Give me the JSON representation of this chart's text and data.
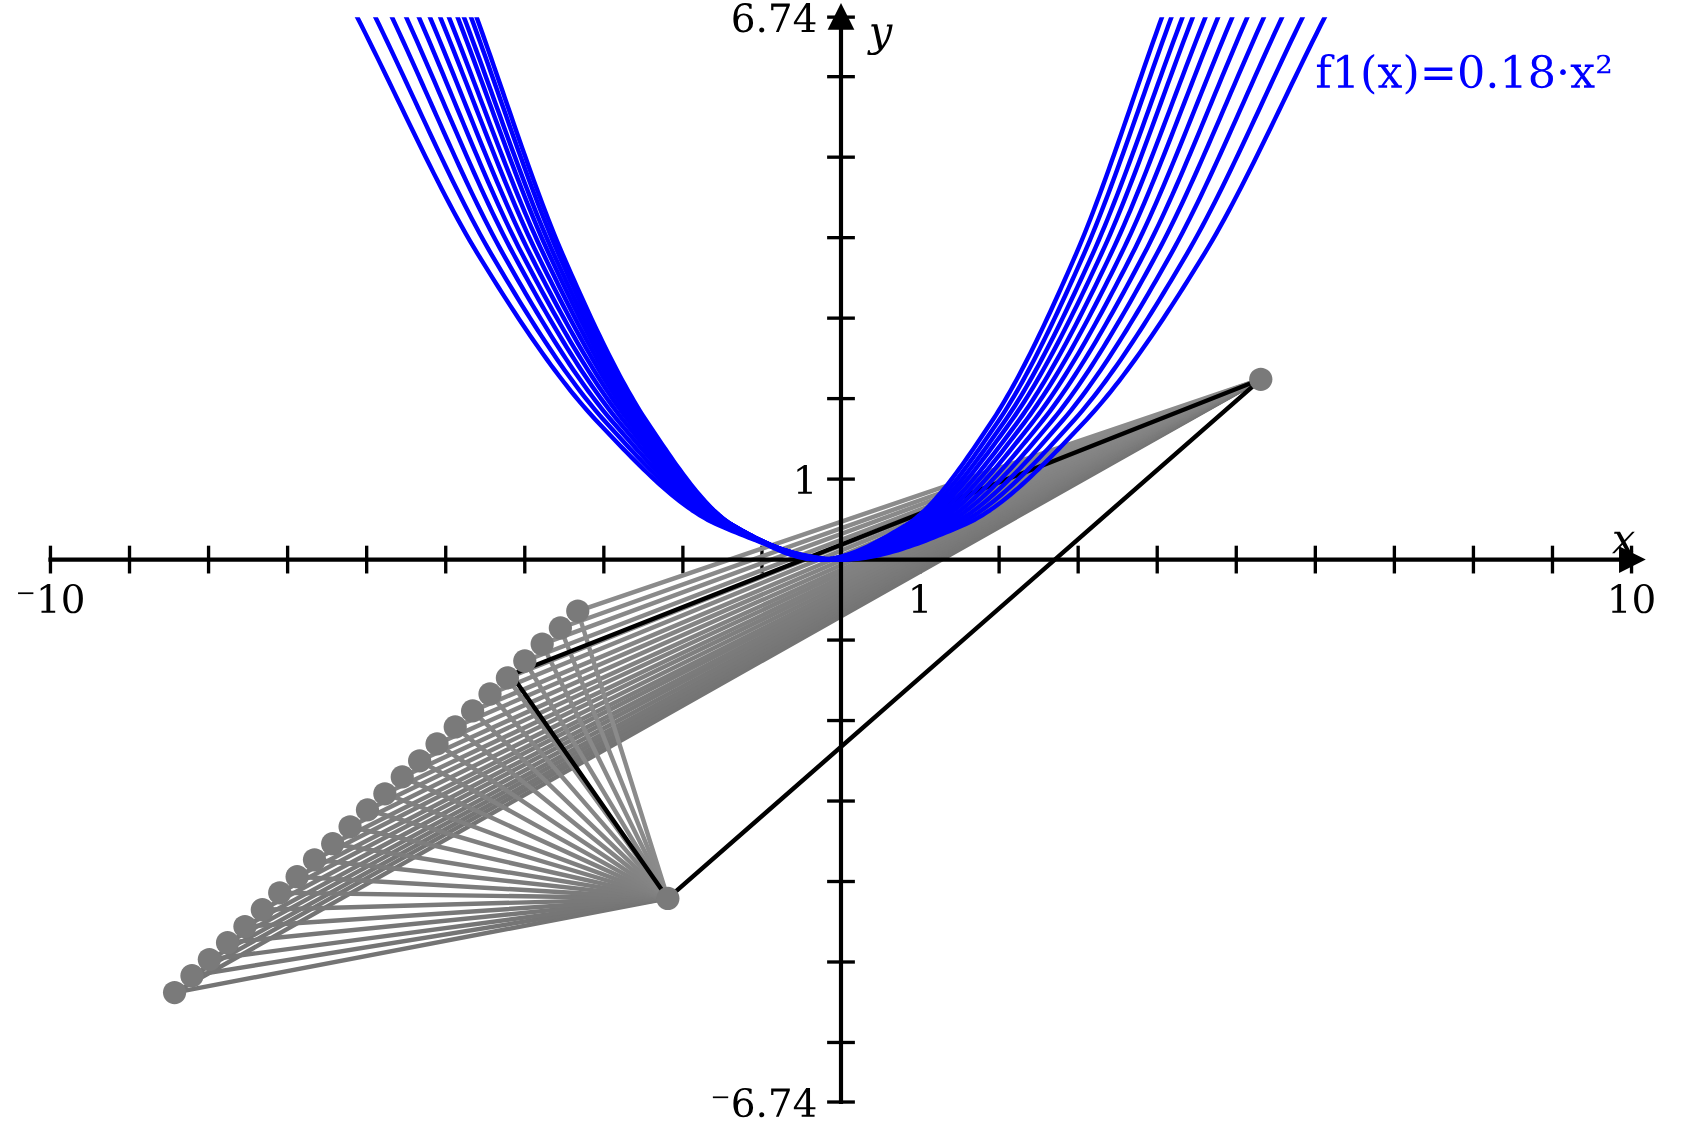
{
  "chart_data": {
    "type": "line",
    "xlabel": "x",
    "ylabel": "y",
    "xlim": [
      -10,
      10
    ],
    "ylim": [
      -6.74,
      6.74
    ],
    "xticks": [
      {
        "value": -10,
        "label": "⁻10"
      },
      {
        "value": -9,
        "label": null
      },
      {
        "value": -8,
        "label": null
      },
      {
        "value": -7,
        "label": null
      },
      {
        "value": -6,
        "label": null
      },
      {
        "value": -5,
        "label": null
      },
      {
        "value": -4,
        "label": null
      },
      {
        "value": -3,
        "label": null
      },
      {
        "value": -2,
        "label": null
      },
      {
        "value": -1,
        "label": null
      },
      {
        "value": 1,
        "label": "1"
      },
      {
        "value": 2,
        "label": null
      },
      {
        "value": 3,
        "label": null
      },
      {
        "value": 4,
        "label": null
      },
      {
        "value": 5,
        "label": null
      },
      {
        "value": 6,
        "label": null
      },
      {
        "value": 7,
        "label": null
      },
      {
        "value": 8,
        "label": null
      },
      {
        "value": 9,
        "label": null
      },
      {
        "value": 10,
        "label": "10"
      }
    ],
    "yticks": [
      {
        "value": -6.74,
        "label": "⁻6.74"
      },
      {
        "value": -6,
        "label": null
      },
      {
        "value": -5,
        "label": null
      },
      {
        "value": -4,
        "label": null
      },
      {
        "value": -3,
        "label": null
      },
      {
        "value": -2,
        "label": null
      },
      {
        "value": -1,
        "label": null
      },
      {
        "value": 1,
        "label": "1"
      },
      {
        "value": 2,
        "label": null
      },
      {
        "value": 3,
        "label": null
      },
      {
        "value": 4,
        "label": null
      },
      {
        "value": 5,
        "label": null
      },
      {
        "value": 6,
        "label": null
      },
      {
        "value": 6.74,
        "label": "6.74"
      }
    ],
    "grid": false,
    "legend": false,
    "annotations": [
      "f1(x)=0.18·x²"
    ],
    "series": [
      {
        "type": "line",
        "color": "#747474",
        "x": [
          -2.19,
          -8.43,
          5.31
        ],
        "values": [
          -4.21,
          -5.38,
          2.24
        ]
      },
      {
        "type": "line",
        "color": "#757575",
        "x": [
          -2.19,
          -8.21,
          5.31
        ],
        "values": [
          -4.21,
          -5.17,
          2.24
        ]
      },
      {
        "type": "line",
        "color": "#767676",
        "x": [
          -2.19,
          -7.99,
          5.31
        ],
        "values": [
          -4.21,
          -4.97,
          2.24
        ]
      },
      {
        "type": "line",
        "color": "#777777",
        "x": [
          -2.19,
          -7.76,
          5.31
        ],
        "values": [
          -4.21,
          -4.76,
          2.24
        ]
      },
      {
        "type": "line",
        "color": "#787878",
        "x": [
          -2.19,
          -7.54,
          5.31
        ],
        "values": [
          -4.21,
          -4.56,
          2.24
        ]
      },
      {
        "type": "line",
        "color": "#797979",
        "x": [
          -2.19,
          -7.32,
          5.31
        ],
        "values": [
          -4.21,
          -4.35,
          2.24
        ]
      },
      {
        "type": "line",
        "color": "#7a7a7a",
        "x": [
          -2.19,
          -7.1,
          5.31
        ],
        "values": [
          -4.21,
          -4.14,
          2.24
        ]
      },
      {
        "type": "line",
        "color": "#7b7b7b",
        "x": [
          -2.19,
          -6.88,
          5.31
        ],
        "values": [
          -4.21,
          -3.94,
          2.24
        ]
      },
      {
        "type": "line",
        "color": "#7c7c7c",
        "x": [
          -2.19,
          -6.66,
          5.31
        ],
        "values": [
          -4.21,
          -3.73,
          2.24
        ]
      },
      {
        "type": "line",
        "color": "#7d7d7d",
        "x": [
          -2.19,
          -6.43,
          5.31
        ],
        "values": [
          -4.21,
          -3.53,
          2.24
        ]
      },
      {
        "type": "line",
        "color": "#7e7e7e",
        "x": [
          -2.19,
          -6.21,
          5.31
        ],
        "values": [
          -4.21,
          -3.32,
          2.24
        ]
      },
      {
        "type": "line",
        "color": "#7f7f7f",
        "x": [
          -2.19,
          -5.99,
          5.31
        ],
        "values": [
          -4.21,
          -3.11,
          2.24
        ]
      },
      {
        "type": "line",
        "color": "#808080",
        "x": [
          -2.19,
          -5.77,
          5.31
        ],
        "values": [
          -4.21,
          -2.91,
          2.24
        ]
      },
      {
        "type": "line",
        "color": "#818181",
        "x": [
          -2.19,
          -5.55,
          5.31
        ],
        "values": [
          -4.21,
          -2.7,
          2.24
        ]
      },
      {
        "type": "line",
        "color": "#828282",
        "x": [
          -2.19,
          -5.33,
          5.31
        ],
        "values": [
          -4.21,
          -2.5,
          2.24
        ]
      },
      {
        "type": "line",
        "color": "#838383",
        "x": [
          -2.19,
          -5.11,
          5.31
        ],
        "values": [
          -4.21,
          -2.29,
          2.24
        ]
      },
      {
        "type": "line",
        "color": "#848484",
        "x": [
          -2.19,
          -4.88,
          5.31
        ],
        "values": [
          -4.21,
          -2.08,
          2.24
        ]
      },
      {
        "type": "line",
        "color": "#858585",
        "x": [
          -2.19,
          -4.66,
          5.31
        ],
        "values": [
          -4.21,
          -1.88,
          2.24
        ]
      },
      {
        "type": "line",
        "color": "#868686",
        "x": [
          -2.19,
          -4.44,
          5.31
        ],
        "values": [
          -4.21,
          -1.67,
          2.24
        ]
      },
      {
        "type": "line",
        "color": "#878787",
        "x": [
          -2.19,
          -4.22,
          5.31
        ],
        "values": [
          -4.21,
          -1.47,
          2.24
        ]
      },
      {
        "type": "line",
        "color": "#888888",
        "x": [
          -2.19,
          -4.0,
          5.31
        ],
        "values": [
          -4.21,
          -1.26,
          2.24
        ]
      },
      {
        "type": "line",
        "color": "#898989",
        "x": [
          -2.19,
          -3.78,
          5.31
        ],
        "values": [
          -4.21,
          -1.05,
          2.24
        ]
      },
      {
        "type": "line",
        "color": "#8a8a8a",
        "x": [
          -2.19,
          -3.55,
          5.31
        ],
        "values": [
          -4.21,
          -0.85,
          2.24
        ]
      },
      {
        "type": "line",
        "color": "#8b8b8b",
        "x": [
          -2.19,
          -3.33,
          5.31
        ],
        "values": [
          -4.21,
          -0.64,
          2.24
        ]
      },
      {
        "type": "scatter",
        "color": "#7a7a7a",
        "marker": "circle",
        "x": [
          -8.43,
          -8.21,
          -7.99,
          -7.76,
          -7.54,
          -7.32,
          -7.1,
          -6.88,
          -6.66,
          -6.43,
          -6.21,
          -5.99,
          -5.77,
          -5.55,
          -5.33,
          -5.11,
          -4.88,
          -4.66,
          -4.44,
          -4.22,
          -4.0,
          -3.78,
          -3.55,
          -3.33,
          -2.19,
          5.31
        ],
        "values": [
          -5.38,
          -5.17,
          -4.97,
          -4.76,
          -4.56,
          -4.35,
          -4.14,
          -3.94,
          -3.73,
          -3.53,
          -3.32,
          -3.11,
          -2.91,
          -2.7,
          -2.5,
          -2.29,
          -2.08,
          -1.88,
          -1.67,
          -1.47,
          -1.26,
          -1.05,
          -0.85,
          -0.64,
          -4.21,
          2.24
        ]
      },
      {
        "type": "line",
        "color": "#000000",
        "x": [
          -4.17,
          -2.19,
          5.31
        ],
        "values": [
          -1.43,
          -4.21,
          2.24
        ]
      },
      {
        "type": "line",
        "color": "#000000",
        "x": [
          5.31,
          -4.17
        ],
        "values": [
          2.24,
          -1.43
        ]
      },
      {
        "type": "line",
        "color": "#0000ff",
        "x": [
          -6.12,
          -4.59,
          -3.06,
          -1.53,
          0,
          1.53,
          3.06,
          4.59,
          6.12
        ],
        "values": [
          6.74,
          3.79,
          1.69,
          0.42,
          0,
          0.42,
          1.69,
          3.79,
          6.74
        ]
      },
      {
        "type": "line",
        "color": "#0000ff",
        "x": [
          -5.89,
          -4.42,
          -2.96,
          -1.49,
          -0.03,
          1.44,
          2.91,
          4.37,
          5.84
        ],
        "values": [
          6.74,
          3.79,
          1.69,
          0.42,
          0,
          0.42,
          1.69,
          3.79,
          6.74
        ]
      },
      {
        "type": "line",
        "color": "#0000ff",
        "x": [
          -5.68,
          -4.27,
          -2.87,
          -1.46,
          -0.05,
          1.36,
          2.77,
          4.17,
          5.58
        ],
        "values": [
          6.74,
          3.79,
          1.69,
          0.42,
          0,
          0.42,
          1.69,
          3.79,
          6.74
        ]
      },
      {
        "type": "line",
        "color": "#0000ff",
        "x": [
          -5.5,
          -4.14,
          -2.79,
          -1.43,
          -0.08,
          1.28,
          2.64,
          3.99,
          5.35
        ],
        "values": [
          6.74,
          3.79,
          1.69,
          0.42,
          0,
          0.42,
          1.69,
          3.79,
          6.74
        ]
      },
      {
        "type": "line",
        "color": "#0000ff",
        "x": [
          -5.34,
          -4.03,
          -2.72,
          -1.41,
          -0.1,
          1.21,
          2.52,
          3.83,
          5.14
        ],
        "values": [
          6.74,
          3.79,
          1.69,
          0.42,
          0,
          0.42,
          1.69,
          3.79,
          6.74
        ]
      },
      {
        "type": "line",
        "color": "#0000ff",
        "x": [
          -5.2,
          -3.93,
          -2.66,
          -1.39,
          -0.13,
          1.14,
          2.41,
          3.68,
          4.95
        ],
        "values": [
          6.74,
          3.79,
          1.69,
          0.42,
          0,
          0.42,
          1.69,
          3.79,
          6.74
        ]
      },
      {
        "type": "line",
        "color": "#0000ff",
        "x": [
          -5.07,
          -3.84,
          -2.61,
          -1.38,
          -0.15,
          1.08,
          2.31,
          3.54,
          4.77
        ],
        "values": [
          6.74,
          3.79,
          1.69,
          0.42,
          0,
          0.42,
          1.69,
          3.79,
          6.74
        ]
      },
      {
        "type": "line",
        "color": "#0000ff",
        "x": [
          -4.96,
          -3.76,
          -2.57,
          -1.37,
          -0.18,
          1.02,
          2.22,
          3.41,
          4.61
        ],
        "values": [
          6.74,
          3.79,
          1.69,
          0.42,
          0,
          0.42,
          1.69,
          3.79,
          6.74
        ]
      },
      {
        "type": "line",
        "color": "#0000ff",
        "x": [
          -4.85,
          -3.69,
          -2.53,
          -1.36,
          -0.2,
          0.96,
          2.13,
          3.29,
          4.45
        ],
        "values": [
          6.74,
          3.79,
          1.69,
          0.42,
          0,
          0.42,
          1.69,
          3.79,
          6.74
        ]
      },
      {
        "type": "line",
        "color": "#0000ff",
        "x": [
          -4.77,
          -3.63,
          -2.5,
          -1.36,
          -0.23,
          0.91,
          2.05,
          3.18,
          4.32
        ],
        "values": [
          6.74,
          3.79,
          1.69,
          0.42,
          0,
          0.42,
          1.69,
          3.79,
          6.74
        ]
      },
      {
        "type": "line",
        "color": "#0000ff",
        "x": [
          -4.68,
          -3.57,
          -2.47,
          -1.36,
          -0.25,
          0.86,
          1.97,
          3.07,
          4.18
        ],
        "values": [
          6.74,
          3.79,
          1.69,
          0.42,
          0,
          0.42,
          1.69,
          3.79,
          6.74
        ]
      },
      {
        "type": "line",
        "color": "#0000ff",
        "x": [
          -4.61,
          -3.52,
          -2.44,
          -1.36,
          -0.28,
          0.81,
          1.89,
          2.97,
          4.06
        ],
        "values": [
          6.74,
          3.79,
          1.69,
          0.42,
          0,
          0.42,
          1.69,
          3.79,
          6.74
        ]
      }
    ]
  }
}
